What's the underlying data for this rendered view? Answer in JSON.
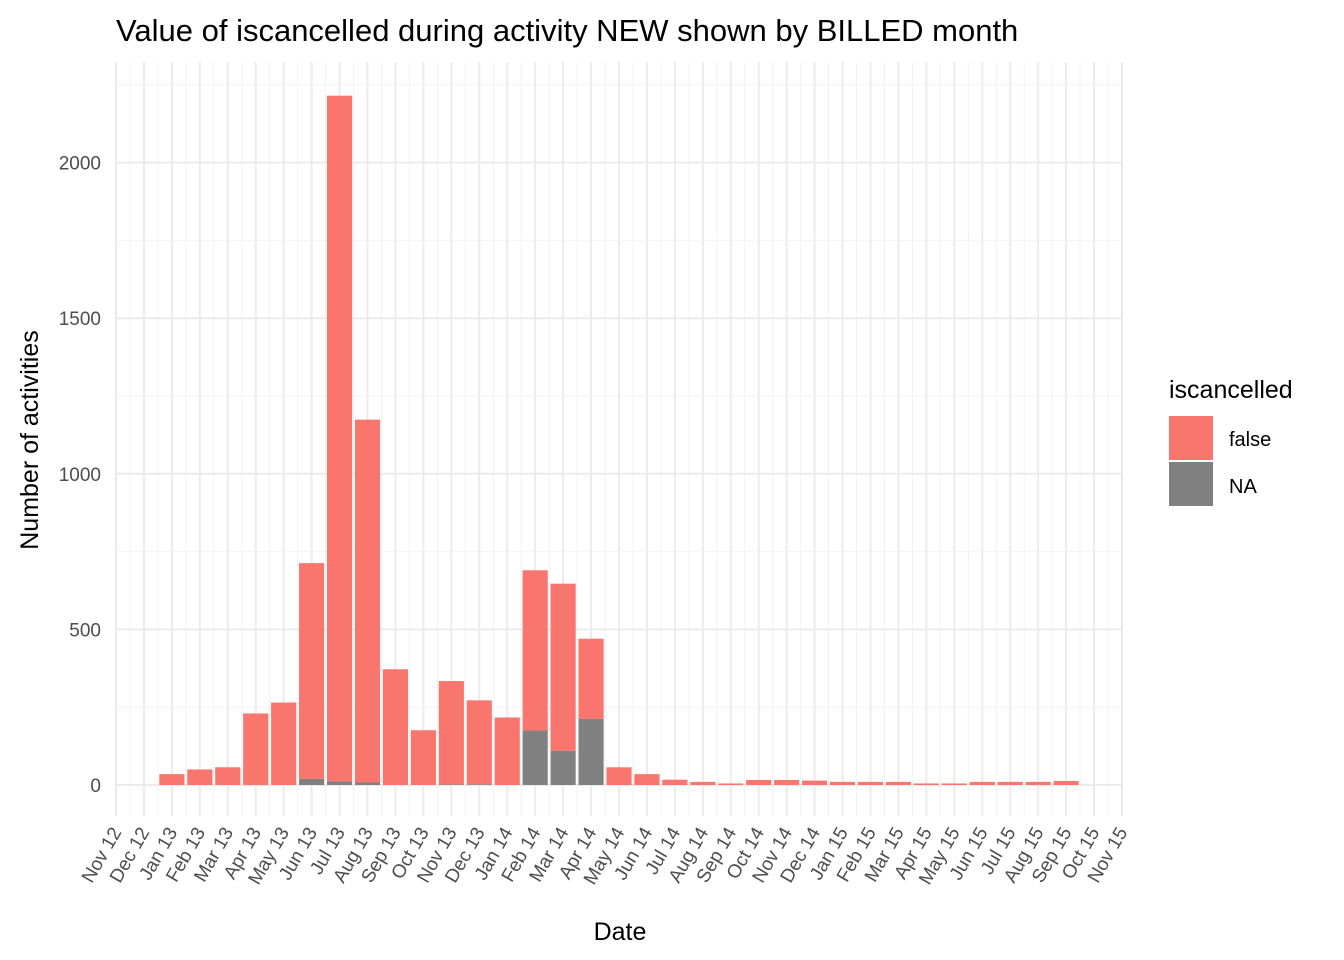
{
  "chart_data": {
    "type": "bar",
    "stacked": true,
    "title": "Value of  iscancelled during activity NEW shown by BILLED month",
    "xlabel": "Date",
    "ylabel": "Number of activities",
    "legend": {
      "title": "iscancelled",
      "position": "right",
      "entries": [
        {
          "label": "false",
          "color": "#F8766D"
        },
        {
          "label": "NA",
          "color": "#808080"
        }
      ]
    },
    "x_ticks": [
      "Nov 12",
      "Dec 12",
      "Jan 13",
      "Feb 13",
      "Mar 13",
      "Apr 13",
      "May 13",
      "Jun 13",
      "Jul 13",
      "Aug 13",
      "Sep 13",
      "Oct 13",
      "Nov 13",
      "Dec 13",
      "Jan 14",
      "Feb 14",
      "Mar 14",
      "Apr 14",
      "May 14",
      "Jun 14",
      "Jul 14",
      "Aug 14",
      "Sep 14",
      "Oct 14",
      "Nov 14",
      "Dec 14",
      "Jan 15",
      "Feb 15",
      "Mar 15",
      "Apr 15",
      "May 15",
      "Jun 15",
      "Jul 15",
      "Aug 15",
      "Sep 15",
      "Oct 15",
      "Nov 15"
    ],
    "y_ticks": [
      0,
      500,
      1000,
      1500,
      2000
    ],
    "ylim": [
      -100,
      2280
    ],
    "categories": [
      "Jan 13",
      "Feb 13",
      "Mar 13",
      "Apr 13",
      "May 13",
      "Jun 13",
      "Jul 13",
      "Aug 13",
      "Sep 13",
      "Oct 13",
      "Nov 13",
      "Dec 13",
      "Jan 14",
      "Feb 14",
      "Mar 14",
      "Apr 14",
      "May 14",
      "Jun 14",
      "Jul 14",
      "Aug 14",
      "Sep 14",
      "Oct 14",
      "Nov 14",
      "Dec 14",
      "Jan 15",
      "Feb 15",
      "Mar 15",
      "Apr 15",
      "May 15",
      "Jun 15",
      "Jul 15",
      "Aug 15",
      "Sep 15"
    ],
    "series": [
      {
        "name": "NA",
        "color": "#808080",
        "values": [
          0,
          0,
          0,
          0,
          0,
          20,
          12,
          8,
          0,
          0,
          2,
          2,
          0,
          175,
          110,
          212,
          0,
          0,
          0,
          0,
          0,
          0,
          0,
          0,
          0,
          0,
          0,
          0,
          0,
          0,
          0,
          0,
          0
        ]
      },
      {
        "name": "false",
        "color": "#F8766D",
        "values": [
          35,
          50,
          57,
          230,
          265,
          693,
          2203,
          1166,
          372,
          176,
          332,
          270,
          217,
          515,
          537,
          258,
          57,
          35,
          17,
          10,
          5,
          16,
          16,
          14,
          10,
          10,
          10,
          5,
          5,
          10,
          10,
          10,
          13
        ]
      }
    ],
    "grid": true
  }
}
